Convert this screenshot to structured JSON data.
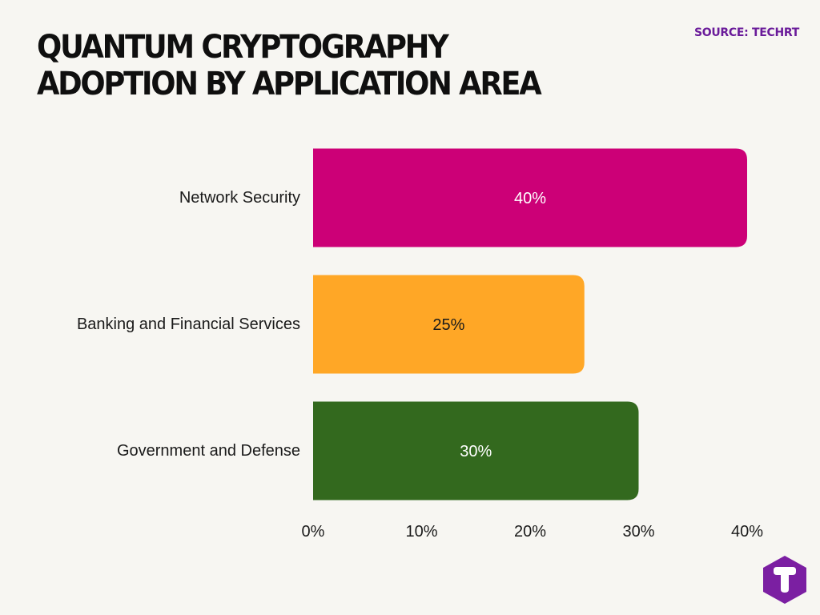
{
  "header": {
    "title": "QUANTUM CRYPTOGRAPHY ADOPTION BY APPLICATION AREA",
    "source": "SOURCE: TECHRT"
  },
  "colors": {
    "title": "#0f0f0f",
    "source": "#6a1b9a",
    "logo": "#7b1fa2"
  },
  "logo": {
    "letter": "T"
  },
  "chart_data": {
    "type": "bar",
    "orientation": "horizontal",
    "title": "QUANTUM CRYPTOGRAPHY ADOPTION BY APPLICATION AREA",
    "xlabel": "",
    "ylabel": "",
    "categories": [
      "Network Security",
      "Banking and Financial Services",
      "Government and Defense"
    ],
    "values": [
      40,
      25,
      30
    ],
    "value_labels": [
      "40%",
      "25%",
      "30%"
    ],
    "bar_colors": [
      "#cc0077",
      "#ffa726",
      "#33691e"
    ],
    "value_label_colors": [
      "#ffffff",
      "#1a1a1a",
      "#ffffff"
    ],
    "xlim": [
      0,
      40
    ],
    "xticks": [
      0,
      10,
      20,
      30,
      40
    ],
    "xtick_labels": [
      "0%",
      "10%",
      "20%",
      "30%",
      "40%"
    ],
    "grid": false,
    "legend": "none"
  }
}
